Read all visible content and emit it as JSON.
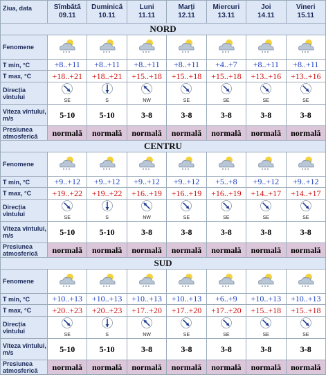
{
  "header": {
    "label": "Ziua, data",
    "days": [
      {
        "name": "Sîmbătă",
        "date": "09.11"
      },
      {
        "name": "Duminică",
        "date": "10.11"
      },
      {
        "name": "Luni",
        "date": "11.11"
      },
      {
        "name": "Marți",
        "date": "12.11"
      },
      {
        "name": "Miercuri",
        "date": "13.11"
      },
      {
        "name": "Joi",
        "date": "14.11"
      },
      {
        "name": "Vineri",
        "date": "15.11"
      }
    ]
  },
  "row_labels": {
    "phenomena": "Fenomene",
    "tmin": "T min, °C",
    "tmax": "T max, °C",
    "wind_dir": "Direcția vîntului",
    "wind_speed": "Viteza vîntului, m/s",
    "pressure": "Presiunea atmosferică"
  },
  "sections": [
    {
      "name": "NORD",
      "tmin": [
        "+8..+11",
        "+8..+11",
        "+8..+11",
        "+8..+11",
        "+4..+7",
        "+8..+11",
        "+8..+11"
      ],
      "tmax": [
        "+18..+21",
        "+18..+21",
        "+15..+18",
        "+15..+18",
        "+15..+18",
        "+13..+16",
        "+13..+16"
      ],
      "wind_dir": [
        "SE",
        "S",
        "NW",
        "SE",
        "SE",
        "SE",
        "SE"
      ],
      "wind_speed": [
        "5-10",
        "5-10",
        "3-8",
        "3-8",
        "3-8",
        "3-8",
        "3-8"
      ],
      "pressure": [
        "normală",
        "normală",
        "normală",
        "normală",
        "normală",
        "normală",
        "normală"
      ]
    },
    {
      "name": "CENTRU",
      "tmin": [
        "+9..+12",
        "+9..+12",
        "+9..+12",
        "+9..+12",
        "+5..+8",
        "+9..+12",
        "+9..+12"
      ],
      "tmax": [
        "+19..+22",
        "+19..+22",
        "+16..+19",
        "+16..+19",
        "+16..+19",
        "+14..+17",
        "+14..+17"
      ],
      "wind_dir": [
        "SE",
        "S",
        "NW",
        "SE",
        "SE",
        "SE",
        "SE"
      ],
      "wind_speed": [
        "5-10",
        "5-10",
        "3-8",
        "3-8",
        "3-8",
        "3-8",
        "3-8"
      ],
      "pressure": [
        "normală",
        "normală",
        "normală",
        "normală",
        "normală",
        "normală",
        "normală"
      ]
    },
    {
      "name": "SUD",
      "tmin": [
        "+10..+13",
        "+10..+13",
        "+10..+13",
        "+10..+13",
        "+6..+9",
        "+10..+13",
        "+10..+13"
      ],
      "tmax": [
        "+20..+23",
        "+20..+23",
        "+17..+20",
        "+17..+20",
        "+17..+20",
        "+15..+18",
        "+15..+18"
      ],
      "wind_dir": [
        "SE",
        "S",
        "NW",
        "SE",
        "SE",
        "SE",
        "SE"
      ],
      "wind_speed": [
        "5-10",
        "5-10",
        "3-8",
        "3-8",
        "3-8",
        "3-8",
        "3-8"
      ],
      "pressure": [
        "normală",
        "normală",
        "normală",
        "normală",
        "normală",
        "normală",
        "normală"
      ]
    }
  ]
}
